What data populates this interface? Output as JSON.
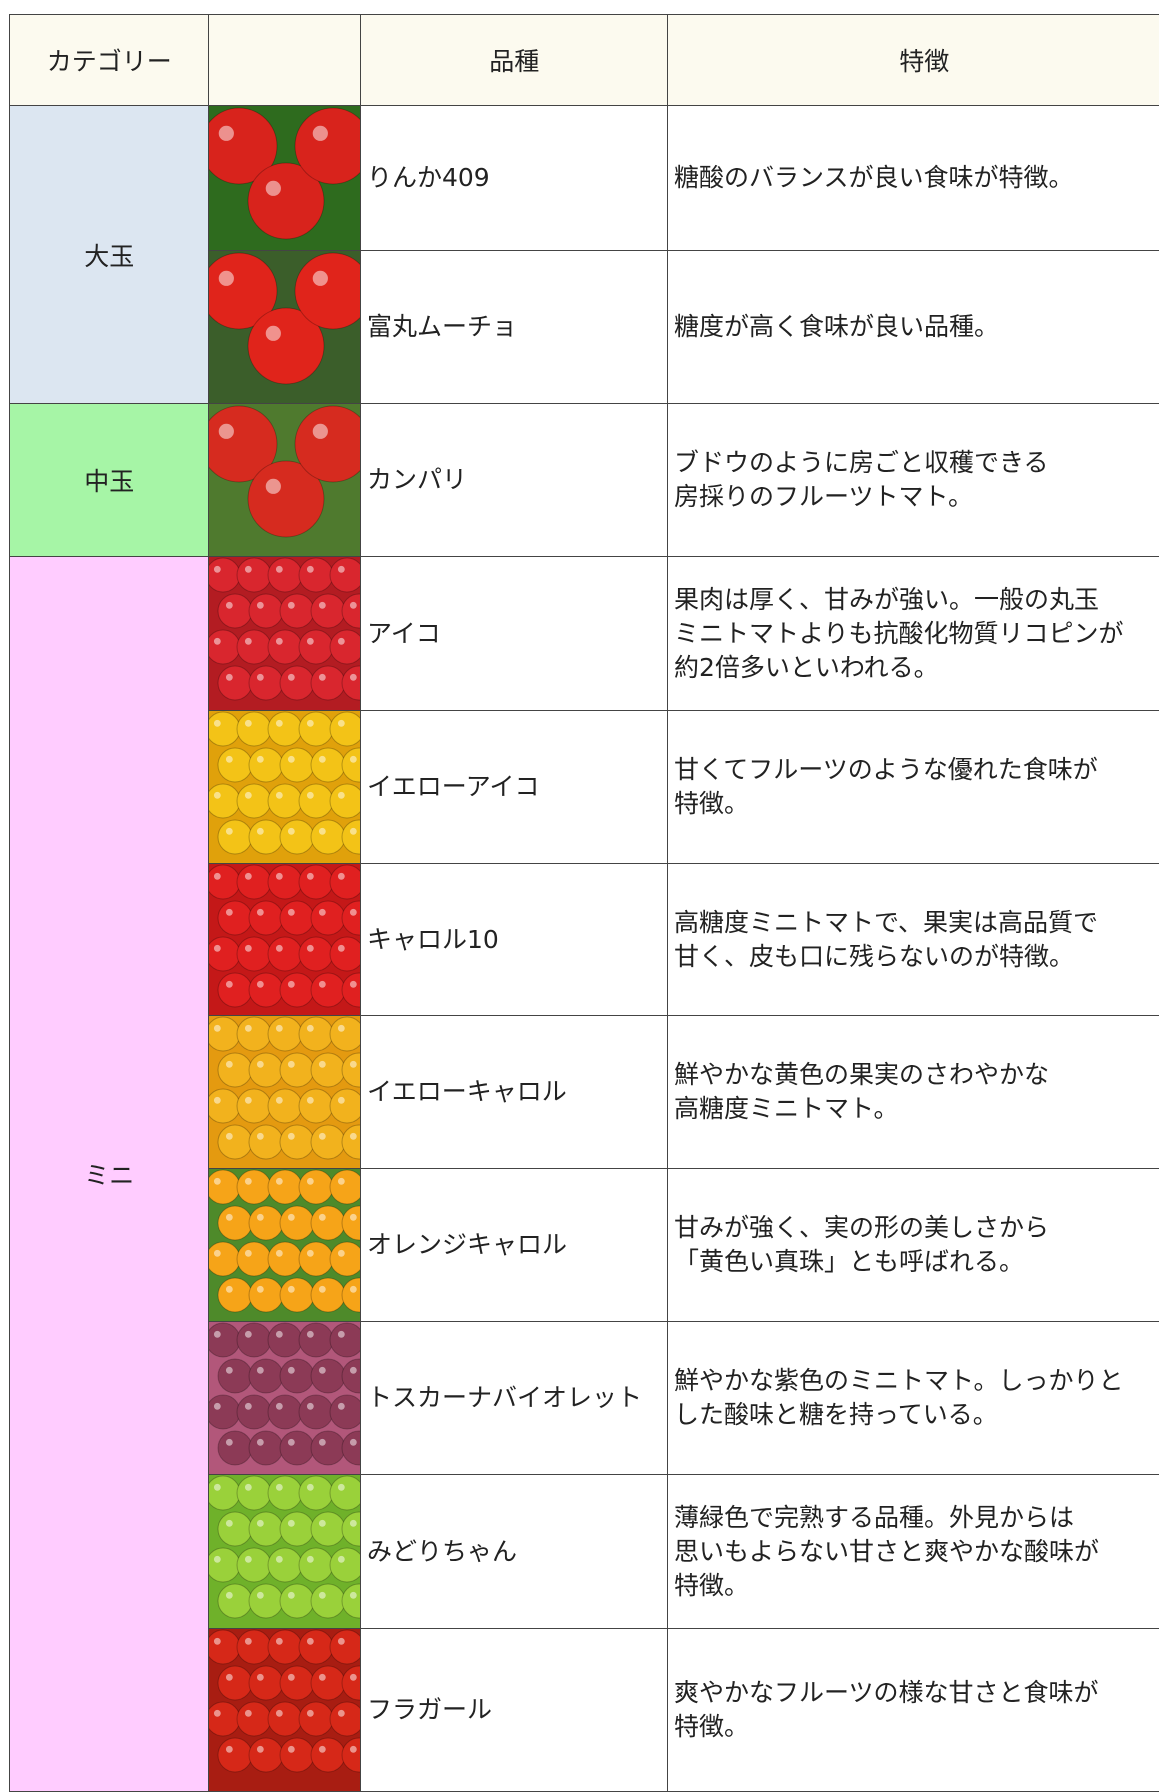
{
  "table": {
    "header": [
      "カテゴリー",
      "",
      "品種",
      "特徴"
    ],
    "categories": [
      {
        "label": "大玉",
        "span": 2
      },
      {
        "label": "中玉",
        "span": 1
      },
      {
        "label": "ミニ",
        "span": 8
      }
    ],
    "rows": [
      {
        "variety": "りんか409",
        "feature": [
          "糖酸のバランスが良い食味が特徴。"
        ]
      },
      {
        "variety": "富丸ムーチョ",
        "feature": [
          "糖度が高く食味が良い品種。"
        ]
      },
      {
        "variety": "カンパリ",
        "feature": [
          "ブドウのように房ごと収穫できる",
          "房採りのフルーツトマト。"
        ]
      },
      {
        "variety": "アイコ",
        "feature": [
          "果肉は厚く、甘みが強い。一般の丸玉",
          "ミニトマトよりも抗酸化物質リコピンが",
          "約2倍多いといわれる。"
        ]
      },
      {
        "variety": "イエローアイコ",
        "feature": [
          "甘くてフルーツのような優れた食味が",
          "特徴。"
        ]
      },
      {
        "variety": "キャロル10",
        "feature": [
          "高糖度ミニトマトで、果実は高品質で",
          "甘く、皮も口に残らないのが特徴。"
        ]
      },
      {
        "variety": "イエローキャロル",
        "feature": [
          "鮮やかな黄色の果実のさわやかな",
          "高糖度ミニトマト。"
        ]
      },
      {
        "variety": "オレンジキャロル",
        "feature": [
          "甘みが強く、実の形の美しさから",
          "「黄色い真珠」とも呼ばれる。"
        ]
      },
      {
        "variety": "トスカーナバイオレット",
        "feature": [
          "鮮やかな紫色のミニトマト。しっかりと",
          "した酸味と糖を持っている。"
        ]
      },
      {
        "variety": "みどりちゃん",
        "feature": [
          "薄緑色で完熟する品種。外見からは",
          "思いもよらない甘さと爽やかな酸味が",
          "特徴。"
        ]
      },
      {
        "variety": "フラガール",
        "feature": [
          "爽やかなフルーツの様な甘さと食味が",
          "特徴。"
        ]
      }
    ]
  }
}
